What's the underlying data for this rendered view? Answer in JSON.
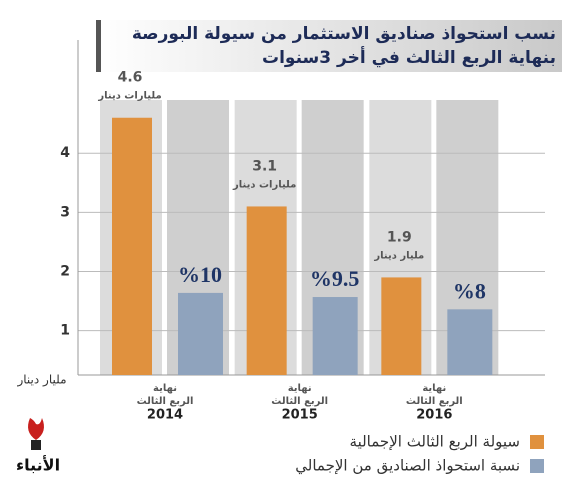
{
  "chart_data": {
    "type": "bar",
    "title_lines": [
      "نسب استحواذ صناديق الاستثمار من سيولة البورصة",
      "بنهاية الربع الثالث في أخر 3سنوات"
    ],
    "y_axis_label": "مليار دينار",
    "categories": [
      "2014",
      "2015",
      "2016"
    ],
    "category_caption": [
      "نهاية",
      "الربع الثالث"
    ],
    "ylim": [
      0.25,
      4.9
    ],
    "yticks": [
      1,
      2,
      3,
      4
    ],
    "y2lim": [
      0,
      33.5
    ],
    "grid": true,
    "series": [
      {
        "name": "سيولة الربع الثالث الإجمالية",
        "color": "#e0913e",
        "values": [
          4.6,
          3.1,
          1.9
        ],
        "unit_labels": [
          "مليارات دينار",
          "مليارات دينار",
          "مليار دينار"
        ]
      },
      {
        "name": "نسبة استحواذ الصناديق من الإجمالي",
        "color": "#8fa3bd",
        "axis": "y2",
        "values": [
          10,
          9.5,
          8
        ],
        "value_labels": [
          "%10",
          "%9.5",
          "%8"
        ]
      }
    ],
    "legend": "bottom-right",
    "logo": "الأنباء"
  }
}
